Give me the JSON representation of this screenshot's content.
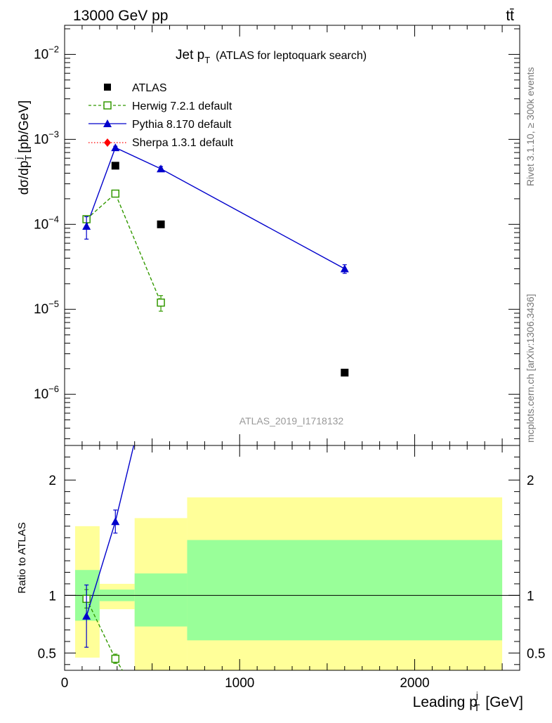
{
  "header": {
    "left": "13000 GeV pp",
    "right": "tt̄"
  },
  "side": {
    "rivet": "Rivet 3.1.10, ≥ 300k events",
    "mcplots": "mcplots.cern.ch [arXiv:1306.3436]"
  },
  "chart_data": {
    "type": "scatter",
    "title": "Jet pT (ATLAS for leptoquark search)",
    "title_main": "Jet p",
    "title_sub": "T",
    "title_rest": "(ATLAS for leptoquark search)",
    "analysis_label": "ATLAS_2019_I1718132",
    "xlabel": "Leading pT [GeV]",
    "xlabel_main": "Leading p",
    "xlabel_sub": "T",
    "xlabel_sup": "j",
    "xlabel_unit": "[GeV]",
    "ylabel": "dσ/dpT [pb/GeV]",
    "ylabel_a": "dσ/dp",
    "ylabel_sub": "T",
    "ylabel_sup": "j",
    "ylabel_unit": "[pb/GeV]",
    "ratio_ylabel": "Ratio to ATLAS",
    "xlim": [
      0,
      2600
    ],
    "ylim": [
      2.5e-07,
      0.022
    ],
    "ratio_ylim": [
      0.35,
      2.3
    ],
    "x_ticks": [
      0,
      1000,
      2000
    ],
    "x_tick_labels": [
      "0",
      "1000",
      "2000"
    ],
    "y_ticks": [
      1e-06,
      1e-05,
      0.0001,
      0.001,
      0.01
    ],
    "y_tick_base": [
      "10",
      "10",
      "10",
      "10",
      "10"
    ],
    "y_tick_exp": [
      "−6",
      "−5",
      "−4",
      "−3",
      "−2"
    ],
    "ratio_ticks": [
      0.5,
      1,
      2
    ],
    "ratio_tick_labels": [
      "0.5",
      "1",
      "2"
    ],
    "bins": [
      {
        "lo": 60,
        "hi": 200,
        "x": 125,
        "data": 0.000115,
        "band1": [
          0.78,
          1.22
        ],
        "band2": [
          0.46,
          1.6
        ]
      },
      {
        "lo": 200,
        "hi": 400,
        "x": 290,
        "data": 0.00049,
        "band1": [
          0.95,
          1.05
        ],
        "band2": [
          0.88,
          1.1
        ]
      },
      {
        "lo": 400,
        "hi": 700,
        "x": 550,
        "data": 0.0001,
        "band1": [
          0.73,
          1.19
        ],
        "band2": [
          0.2,
          1.67
        ]
      },
      {
        "lo": 700,
        "hi": 2500,
        "x": 1600,
        "data": 1.8e-06,
        "band1": [
          0.61,
          1.48
        ],
        "band2": [
          0.2,
          1.85
        ]
      }
    ],
    "series": [
      {
        "name": "ATLAS",
        "legend": "ATLAS",
        "x": [
          125,
          290,
          550,
          1600
        ],
        "y": [
          0.000115,
          0.00049,
          0.0001,
          1.8e-06
        ],
        "color": "#000000",
        "marker": "square"
      },
      {
        "name": "Herwig",
        "legend": "Herwig 7.2.1 default",
        "x": [
          125,
          290,
          550
        ],
        "y": [
          0.000115,
          0.00023,
          1.2e-05
        ],
        "yerr": [
          5e-06,
          1e-05,
          2.5e-06
        ],
        "ratio": [
          0.97,
          0.45
        ],
        "ratio_err": [
          0.08,
          0.04
        ],
        "ratio_line_end": [
          330,
          0.35
        ],
        "color": "#339900",
        "marker": "open-square"
      },
      {
        "name": "Pythia",
        "legend": "Pythia 8.170 default",
        "x": [
          125,
          290,
          550,
          1600
        ],
        "y": [
          9.5e-05,
          0.0008,
          0.00045,
          3e-05
        ],
        "yerr": [
          2.8e-05,
          3e-05,
          3e-05,
          3.5e-06
        ],
        "ratio": [
          0.82,
          1.64
        ],
        "ratio_err": [
          0.27,
          0.1
        ],
        "ratio_line_end": [
          395,
          2.3
        ],
        "color": "#0000cc",
        "marker": "triangle"
      },
      {
        "name": "Sherpa",
        "legend": "Sherpa 1.3.1 default",
        "x": [],
        "y": [],
        "color": "#ff0000",
        "marker": "diamond"
      }
    ],
    "band_colors": {
      "inner": "#99ff99",
      "outer": "#ffff99"
    }
  }
}
